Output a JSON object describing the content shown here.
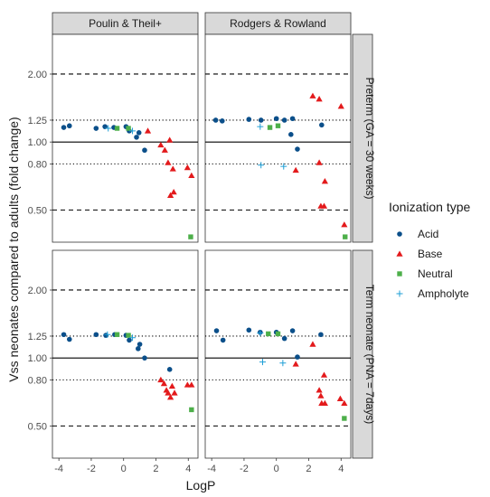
{
  "chart_data": {
    "type": "scatter",
    "xlabel": "LogP",
    "ylabel": "Vss neonates compared to adults (fold change)",
    "xlim": [
      -4.4,
      4.6
    ],
    "ylim": [
      0.36,
      3.0
    ],
    "y_scale": "log",
    "x_ticks": [
      -4,
      -2,
      0,
      2,
      4
    ],
    "x_tick_labels": [
      "-4",
      "-2",
      "0",
      "2",
      "4"
    ],
    "y_ticks": [
      0.5,
      0.8,
      1.0,
      1.25,
      2.0
    ],
    "y_tick_labels": [
      "0.50",
      "0.80",
      "1.00",
      "1.25",
      "2.00"
    ],
    "reference_lines": [
      {
        "y": 1.0,
        "style": "solid"
      },
      {
        "y": 0.8,
        "style": "dotted"
      },
      {
        "y": 1.25,
        "style": "dotted"
      },
      {
        "y": 0.5,
        "style": "dashed"
      },
      {
        "y": 2.0,
        "style": "dashed"
      }
    ],
    "col_facets": [
      "Poulin & Theil+",
      "Rodgers & Rowland"
    ],
    "row_facets": [
      "Preterm (GA = 30 weeks)",
      "Term neonate (PNA = 7days)"
    ],
    "legend": {
      "title": "Ionization type",
      "placement": "right",
      "entries": [
        {
          "name": "Acid",
          "color": "#0b4f8a",
          "shape": "circle"
        },
        {
          "name": "Base",
          "color": "#e31a1c",
          "shape": "triangle"
        },
        {
          "name": "Neutral",
          "color": "#4daf4a",
          "shape": "square"
        },
        {
          "name": "Ampholyte",
          "color": "#1f9fd6",
          "shape": "plus"
        }
      ]
    },
    "panels": [
      {
        "row": 0,
        "col": 0,
        "points": {
          "Acid": [
            [
              -3.7,
              1.16
            ],
            [
              -3.35,
              1.18
            ],
            [
              -1.7,
              1.15
            ],
            [
              -1.15,
              1.17
            ],
            [
              -0.6,
              1.16
            ],
            [
              0.15,
              1.17
            ],
            [
              0.35,
              1.12
            ],
            [
              0.8,
              1.05
            ],
            [
              0.95,
              1.1
            ],
            [
              1.3,
              0.92
            ]
          ],
          "Base": [
            [
              1.5,
              1.12
            ],
            [
              2.3,
              0.97
            ],
            [
              2.55,
              0.92
            ],
            [
              2.75,
              0.81
            ],
            [
              2.85,
              1.02
            ],
            [
              2.9,
              0.58
            ],
            [
              3.05,
              0.76
            ],
            [
              3.1,
              0.6
            ],
            [
              3.95,
              0.77
            ],
            [
              4.2,
              0.71
            ]
          ],
          "Neutral": [
            [
              -0.4,
              1.15
            ],
            [
              0.3,
              1.15
            ],
            [
              4.15,
              0.38
            ]
          ],
          "Ampholyte": [
            [
              -0.95,
              1.15
            ],
            [
              0.55,
              1.12
            ]
          ]
        }
      },
      {
        "row": 0,
        "col": 1,
        "points": {
          "Acid": [
            [
              -3.75,
              1.25
            ],
            [
              -3.35,
              1.24
            ],
            [
              -1.7,
              1.26
            ],
            [
              -0.95,
              1.25
            ],
            [
              0.0,
              1.27
            ],
            [
              0.5,
              1.25
            ],
            [
              0.9,
              1.08
            ],
            [
              1.0,
              1.27
            ],
            [
              1.3,
              0.93
            ],
            [
              2.8,
              1.19
            ]
          ],
          "Base": [
            [
              1.2,
              0.75
            ],
            [
              2.25,
              1.6
            ],
            [
              2.65,
              1.55
            ],
            [
              2.65,
              0.81
            ],
            [
              2.75,
              0.52
            ],
            [
              2.95,
              0.52
            ],
            [
              3.0,
              0.67
            ],
            [
              4.0,
              1.44
            ],
            [
              4.2,
              0.43
            ]
          ],
          "Neutral": [
            [
              -0.4,
              1.16
            ],
            [
              0.1,
              1.18
            ],
            [
              4.25,
              0.38
            ]
          ],
          "Ampholyte": [
            [
              -1.0,
              1.17
            ],
            [
              -0.95,
              0.79
            ],
            [
              0.45,
              0.78
            ]
          ]
        }
      },
      {
        "row": 1,
        "col": 0,
        "points": {
          "Acid": [
            [
              -3.7,
              1.27
            ],
            [
              -3.35,
              1.21
            ],
            [
              -1.7,
              1.27
            ],
            [
              -1.1,
              1.26
            ],
            [
              -0.55,
              1.27
            ],
            [
              0.15,
              1.26
            ],
            [
              0.35,
              1.2
            ],
            [
              0.9,
              1.1
            ],
            [
              1.0,
              1.15
            ],
            [
              1.3,
              1.0
            ],
            [
              2.85,
              0.89
            ]
          ],
          "Base": [
            [
              2.3,
              0.8
            ],
            [
              2.5,
              0.77
            ],
            [
              2.65,
              0.72
            ],
            [
              2.75,
              0.7
            ],
            [
              2.9,
              0.67
            ],
            [
              3.0,
              0.75
            ],
            [
              3.15,
              0.7
            ],
            [
              3.95,
              0.76
            ],
            [
              4.2,
              0.76
            ]
          ],
          "Neutral": [
            [
              -0.4,
              1.27
            ],
            [
              0.3,
              1.26
            ],
            [
              4.2,
              0.59
            ]
          ],
          "Ampholyte": [
            [
              -1.0,
              1.27
            ],
            [
              0.55,
              1.23
            ]
          ]
        }
      },
      {
        "row": 1,
        "col": 1,
        "points": {
          "Acid": [
            [
              -3.7,
              1.32
            ],
            [
              -3.3,
              1.2
            ],
            [
              -1.7,
              1.33
            ],
            [
              -1.0,
              1.3
            ],
            [
              0.0,
              1.3
            ],
            [
              0.5,
              1.22
            ],
            [
              1.0,
              1.32
            ],
            [
              1.3,
              1.01
            ],
            [
              2.75,
              1.27
            ]
          ],
          "Base": [
            [
              1.2,
              0.94
            ],
            [
              2.25,
              1.15
            ],
            [
              2.65,
              0.72
            ],
            [
              2.75,
              0.68
            ],
            [
              2.8,
              0.63
            ],
            [
              2.95,
              0.84
            ],
            [
              3.0,
              0.63
            ],
            [
              3.95,
              0.66
            ],
            [
              4.2,
              0.63
            ]
          ],
          "Neutral": [
            [
              -0.5,
              1.28
            ],
            [
              0.1,
              1.28
            ],
            [
              4.2,
              0.54
            ]
          ],
          "Ampholyte": [
            [
              -1.0,
              1.29
            ],
            [
              -0.85,
              0.96
            ],
            [
              0.4,
              0.95
            ]
          ]
        }
      }
    ]
  }
}
